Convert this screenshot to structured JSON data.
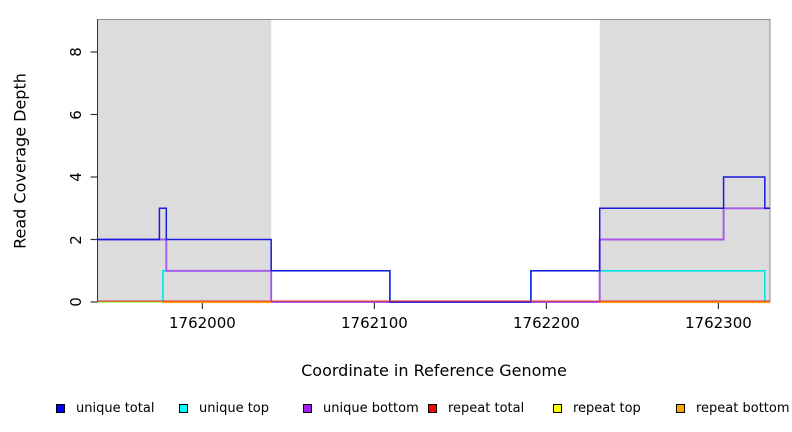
{
  "figure": {
    "background": "#FFFFFF",
    "shaded_region_color": "#DCDCDC",
    "box_color": "#909090",
    "axis_color": "#333333",
    "tick_label_color": "#000000"
  },
  "chart_data": {
    "type": "line",
    "title": "",
    "xlabel": "Coordinate in Reference Genome",
    "ylabel": "Read Coverage Depth",
    "xlim": [
      1761939,
      1762330
    ],
    "ylim": [
      0,
      9.04
    ],
    "grid": false,
    "legend_position": "bottom",
    "x_ticks": [
      {
        "value": 1762000,
        "label": "1762000"
      },
      {
        "value": 1762100,
        "label": "1762100"
      },
      {
        "value": 1762200,
        "label": "1762200"
      },
      {
        "value": 1762300,
        "label": "1762300"
      }
    ],
    "y_ticks": [
      {
        "value": 0,
        "label": "0"
      },
      {
        "value": 2,
        "label": "2"
      },
      {
        "value": 4,
        "label": "4"
      },
      {
        "value": 6,
        "label": "6"
      },
      {
        "value": 8,
        "label": "8"
      }
    ],
    "shaded_regions": [
      {
        "x0": 1761939,
        "x1": 1762040
      },
      {
        "x0": 1762231,
        "x1": 1762330
      }
    ],
    "series": [
      {
        "key": "unique_total",
        "label": "unique total",
        "legend_color": "#0000FF",
        "line_color": "#1A1AE0",
        "line_width": 1.5,
        "opacity": 1,
        "dy": 0,
        "z": 4,
        "segments": [
          [
            [
              1761939,
              2
            ],
            [
              1761975,
              2
            ],
            [
              1761975,
              3
            ],
            [
              1761979,
              3
            ],
            [
              1761979,
              2
            ],
            [
              1762040,
              2
            ],
            [
              1762040,
              1
            ],
            [
              1762109,
              1
            ],
            [
              1762109,
              0
            ],
            [
              1762191,
              0
            ],
            [
              1762191,
              1
            ],
            [
              1762231,
              1
            ],
            [
              1762231,
              3
            ],
            [
              1762303,
              3
            ],
            [
              1762303,
              4
            ],
            [
              1762327,
              4
            ],
            [
              1762327,
              3
            ],
            [
              1762330,
              3
            ]
          ]
        ]
      },
      {
        "key": "unique_top",
        "label": "unique top",
        "legend_color": "#00FFFF",
        "line_color": "#00E5E5",
        "line_width": 1.6,
        "opacity": 1,
        "dy": 0,
        "z": 1,
        "segments": [
          [
            [
              1761939,
              0
            ],
            [
              1761977,
              0
            ],
            [
              1761977,
              1
            ],
            [
              1762109,
              1
            ],
            [
              1762109,
              0
            ],
            [
              1762191,
              0
            ],
            [
              1762191,
              1
            ],
            [
              1762327,
              1
            ],
            [
              1762327,
              0
            ],
            [
              1762330,
              0
            ]
          ]
        ]
      },
      {
        "key": "unique_bottom",
        "label": "unique bottom",
        "legend_color": "#A020F0",
        "line_color": "#A858E8",
        "line_width": 1.9,
        "opacity": 1,
        "dy": 0,
        "z": 3,
        "segments": [
          [
            [
              1761939,
              2
            ],
            [
              1761979,
              2
            ],
            [
              1761979,
              1
            ],
            [
              1762040,
              1
            ],
            [
              1762040,
              0
            ],
            [
              1762231,
              0
            ],
            [
              1762231,
              2
            ],
            [
              1762303,
              2
            ],
            [
              1762303,
              3
            ],
            [
              1762330,
              3
            ]
          ]
        ]
      },
      {
        "key": "repeat_total",
        "label": "repeat total",
        "legend_color": "#FF0000",
        "line_color": "#D93030",
        "line_width": 1.1,
        "opacity": 1,
        "dy": -0.9,
        "z": 5,
        "segments": [
          [
            [
              1761939,
              0
            ],
            [
              1762330,
              0
            ]
          ]
        ]
      },
      {
        "key": "repeat_top",
        "label": "repeat top",
        "legend_color": "#FFFF00",
        "line_color": "#FFFF00",
        "line_width": 1.5,
        "opacity": 0.7,
        "dy": 0,
        "z": 2,
        "segments": [
          [
            [
              1761939,
              0
            ],
            [
              1762330,
              0
            ]
          ]
        ]
      },
      {
        "key": "repeat_bottom",
        "label": "repeat bottom",
        "legend_color": "#FFA500",
        "line_color": "#FF9D12",
        "line_width": 1.7,
        "opacity": 1,
        "dy": 0.3,
        "z": 6,
        "segments": [
          [
            [
              1761977,
              0
            ],
            [
              1762040,
              0
            ]
          ],
          [
            [
              1762231,
              0
            ],
            [
              1762330,
              0
            ]
          ]
        ]
      }
    ]
  }
}
